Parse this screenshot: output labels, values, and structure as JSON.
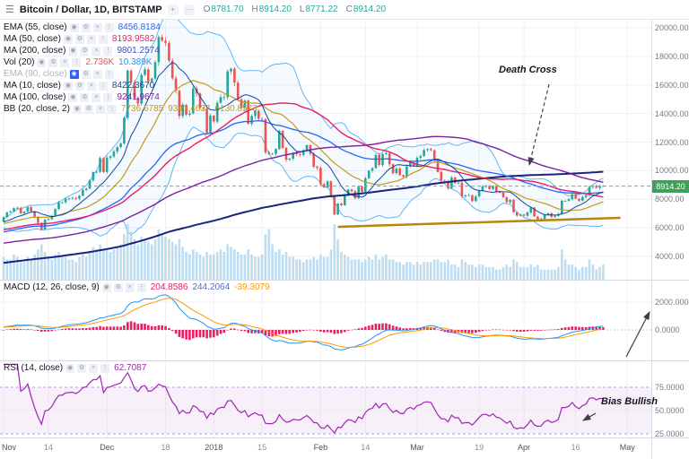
{
  "topbar": {
    "title": "Bitcoin / Dollar, 1D, BITSTAMP",
    "ohlc": [
      {
        "label": "O",
        "value": "8781.70"
      },
      {
        "label": "H",
        "value": "8914.20"
      },
      {
        "label": "L",
        "value": "8771.22"
      },
      {
        "label": "C",
        "value": "8914.20"
      }
    ]
  },
  "legend": {
    "rows": [
      {
        "label": "EMA (55, close)",
        "disabled": false,
        "active_eye": false,
        "values": [
          {
            "text": "8456.8184",
            "color": "#2962ff"
          }
        ]
      },
      {
        "label": "MA (50, close)",
        "disabled": false,
        "active_eye": false,
        "values": [
          {
            "text": "8193.9582",
            "color": "#e91e63"
          }
        ]
      },
      {
        "label": "MA (200, close)",
        "disabled": false,
        "active_eye": false,
        "values": [
          {
            "text": "9801.2574",
            "color": "#3f51b5"
          }
        ]
      },
      {
        "label": "Vol (20)",
        "disabled": false,
        "active_eye": false,
        "values": [
          {
            "text": "2.736K",
            "color": "#ef5350"
          },
          {
            "text": "10.389K",
            "color": "#2196f3"
          }
        ]
      },
      {
        "label": "EMA (90, close)",
        "disabled": true,
        "active_eye": true,
        "values": []
      },
      {
        "label": "MA (10, close)",
        "disabled": false,
        "active_eye": false,
        "values": [
          {
            "text": "8422.3670",
            "color": "#0d47a1"
          }
        ]
      },
      {
        "label": "MA (100, close)",
        "disabled": false,
        "active_eye": false,
        "values": [
          {
            "text": "9241.9674",
            "color": "#7b1fa2"
          }
        ]
      },
      {
        "label": "BB (20, close, 2)",
        "disabled": false,
        "active_eye": false,
        "values": [
          {
            "text": "7736.6785",
            "color": "#c49a1a"
          },
          {
            "text": "9341.4637",
            "color": "#c49a1a"
          },
          {
            "text": "6130.8573",
            "color": "#c49a1a"
          }
        ]
      }
    ]
  },
  "macd_legend": {
    "label": "MACD (12, 26, close, 9)",
    "values": [
      {
        "text": "204.8586",
        "color": "#e91e63"
      },
      {
        "text": "244.2064",
        "color": "#5c6bc0"
      },
      {
        "text": "-39.3079",
        "color": "#ff9800"
      }
    ]
  },
  "rsi_legend": {
    "label": "RSI (14, close)",
    "values": [
      {
        "text": "62.7087",
        "color": "#9c27b0"
      }
    ]
  },
  "annotations": {
    "death_cross": "Death Cross",
    "bias_bullish": "Bias Bullish"
  },
  "price_axis": {
    "ticks": [
      "20000.00",
      "18000.00",
      "16000.00",
      "14000.00",
      "12000.00",
      "10000.00",
      "8000.00",
      "6000.00",
      "4000.00"
    ],
    "current": "8914.20",
    "current_bg": "#3fa05a",
    "current_price": 8914.2
  },
  "macd_axis": [
    {
      "label": "2000.0000",
      "value": 2000
    },
    {
      "label": "0.0000",
      "value": 0
    }
  ],
  "rsi_axis": [
    {
      "label": "75.0000",
      "value": 75
    },
    {
      "label": "50.0000",
      "value": 50
    },
    {
      "label": "25.0000",
      "value": 25
    }
  ],
  "time_axis": [
    {
      "label": "Nov",
      "idx": 0,
      "major": true
    },
    {
      "label": "14",
      "idx": 13,
      "major": false
    },
    {
      "label": "Dec",
      "idx": 30,
      "major": true
    },
    {
      "label": "18",
      "idx": 47,
      "major": false
    },
    {
      "label": "2018",
      "idx": 61,
      "major": true
    },
    {
      "label": "15",
      "idx": 75,
      "major": false
    },
    {
      "label": "Feb",
      "idx": 92,
      "major": true
    },
    {
      "label": "14",
      "idx": 105,
      "major": false
    },
    {
      "label": "Mar",
      "idx": 120,
      "major": true
    },
    {
      "label": "19",
      "idx": 138,
      "major": false
    },
    {
      "label": "Apr",
      "idx": 151,
      "major": true
    },
    {
      "label": "16",
      "idx": 166,
      "major": false
    },
    {
      "label": "May",
      "idx": 181,
      "major": true
    }
  ],
  "chart_data": {
    "type": "candlestick",
    "title": "Bitcoin / Dollar, 1D, BITSTAMP",
    "ylim": [
      4000,
      20000
    ],
    "x_domain_slots": 189,
    "up_color": "#26a69a",
    "down_color": "#ef5350",
    "volume_color": "#b3d7ef",
    "closes": [
      6750,
      7080,
      7150,
      7380,
      7410,
      7020,
      7140,
      7450,
      7150,
      6770,
      6350,
      5880,
      6560,
      6610,
      6850,
      7320,
      7780,
      7790,
      8040,
      8070,
      8100,
      8040,
      8250,
      8650,
      8750,
      9320,
      9900,
      9920,
      10880,
      9900,
      10900,
      11000,
      11350,
      11650,
      11900,
      13700,
      17000,
      16200,
      15100,
      14700,
      16700,
      17080,
      16250,
      16450,
      17600,
      19350,
      19100,
      18950,
      17700,
      16470,
      15600,
      13830,
      14610,
      13920,
      14000,
      15750,
      15400,
      14400,
      14340,
      12640,
      13850,
      13440,
      14750,
      15150,
      15150,
      16950,
      17140,
      16160,
      15000,
      14400,
      14900,
      13280,
      13830,
      14190,
      13630,
      13600,
      11280,
      11160,
      11180,
      11520,
      12780,
      11600,
      10770,
      10840,
      11240,
      11150,
      11100,
      11440,
      11780,
      11190,
      10280,
      10200,
      9050,
      8830,
      9250,
      8180,
      6940,
      7700,
      7580,
      8260,
      8690,
      8560,
      8070,
      8890,
      8520,
      9470,
      10000,
      10180,
      11100,
      10400,
      11160,
      11230,
      10450,
      9830,
      10150,
      9690,
      9590,
      10300,
      10580,
      10320,
      10900,
      11020,
      11440,
      11510,
      11430,
      10730,
      9910,
      9300,
      9250,
      8780,
      9530,
      9130,
      9150,
      8200,
      8270,
      8280,
      7870,
      8200,
      8600,
      8900,
      8920,
      8710,
      8930,
      8540,
      8460,
      8140,
      7790,
      7960,
      7090,
      6850,
      6930,
      6840,
      7080,
      7420,
      6790,
      6600,
      6630,
      6910,
      7020,
      6770,
      6840,
      6970,
      7890,
      7890,
      8000,
      8350,
      8050,
      7900,
      8160,
      8290,
      8860,
      8920,
      8800,
      8930,
      8914
    ],
    "volumes": [
      9,
      8,
      8,
      10,
      9,
      7,
      7,
      9,
      8,
      10,
      12,
      14,
      11,
      9,
      8,
      10,
      11,
      9,
      9,
      8,
      8,
      7,
      9,
      10,
      9,
      11,
      13,
      12,
      14,
      12,
      12,
      11,
      12,
      13,
      14,
      18,
      22,
      19,
      16,
      14,
      17,
      16,
      15,
      14,
      16,
      20,
      18,
      17,
      16,
      15,
      14,
      16,
      13,
      11,
      10,
      12,
      11,
      10,
      9,
      11,
      10,
      10,
      11,
      12,
      11,
      14,
      13,
      12,
      11,
      10,
      10,
      12,
      10,
      9,
      9,
      10,
      18,
      20,
      14,
      11,
      12,
      10,
      11,
      9,
      9,
      8,
      8,
      7,
      8,
      8,
      9,
      8,
      10,
      9,
      9,
      12,
      22,
      16,
      11,
      10,
      9,
      8,
      8,
      8,
      7,
      8,
      9,
      8,
      10,
      8,
      9,
      10,
      8,
      8,
      7,
      7,
      6,
      7,
      7,
      6,
      7,
      6,
      7,
      7,
      7,
      8,
      8,
      7,
      7,
      8,
      6,
      6,
      5,
      8,
      7,
      6,
      6,
      5,
      6,
      6,
      5,
      5,
      5,
      4,
      4,
      5,
      6,
      5,
      8,
      7,
      5,
      5,
      5,
      6,
      5,
      6,
      4,
      4,
      4,
      4,
      4,
      5,
      12,
      8,
      6,
      6,
      5,
      4,
      5,
      5,
      8,
      6,
      4,
      5,
      6
    ],
    "pre_history_waypoints": [
      1150,
      1400,
      2300,
      2550,
      1950,
      2750,
      4600,
      3250,
      4350,
      5600,
      6100,
      6450
    ],
    "overlays": [
      {
        "id": "ma200",
        "type": "sma",
        "period": 200,
        "color": "#1a237e",
        "width": 2
      },
      {
        "id": "ma100",
        "type": "sma",
        "period": 100,
        "color": "#7b1fa2",
        "width": 1.4
      },
      {
        "id": "ema55",
        "type": "ema",
        "period": 55,
        "color": "#2962ff",
        "width": 1.3
      },
      {
        "id": "ma50",
        "type": "sma",
        "period": 50,
        "color": "#e91e63",
        "width": 1.4
      },
      {
        "id": "ma10",
        "type": "sma",
        "period": 10,
        "color": "#0d47a1",
        "width": 1
      }
    ],
    "bb": {
      "period": 20,
      "mult": 2,
      "basis_color": "#c49a1a",
      "band_color": "#64b5f6",
      "fill": "rgba(33,150,243,0.05)"
    },
    "macd": {
      "fast": 12,
      "slow": 26,
      "signal": 9,
      "macd_color": "#2196f3",
      "signal_color": "#ff9800",
      "hist_color": "#e91e63"
    },
    "rsi": {
      "period": 14,
      "color": "#9c27b0",
      "band": [
        25,
        75
      ],
      "band_fill": "rgba(156,39,176,0.07)",
      "band_line": "#b39ddb"
    },
    "trendline": {
      "from_idx": 97,
      "from_price": 6070,
      "to_idx": 179,
      "to_price": 6700,
      "color": "#b8860b",
      "width": 2.5
    },
    "arrows": [
      {
        "id": "death-cross-arrow",
        "dashed": true,
        "from": [
          612,
          72
        ],
        "to": [
          590,
          162
        ]
      },
      {
        "id": "macd-up-arrow",
        "dashed": false,
        "from": [
          698,
          376
        ],
        "to": [
          724,
          326
        ]
      },
      {
        "id": "bias-bullish-arrow",
        "dashed": false,
        "from": [
          664,
          439
        ],
        "to": [
          650,
          447
        ]
      }
    ]
  }
}
